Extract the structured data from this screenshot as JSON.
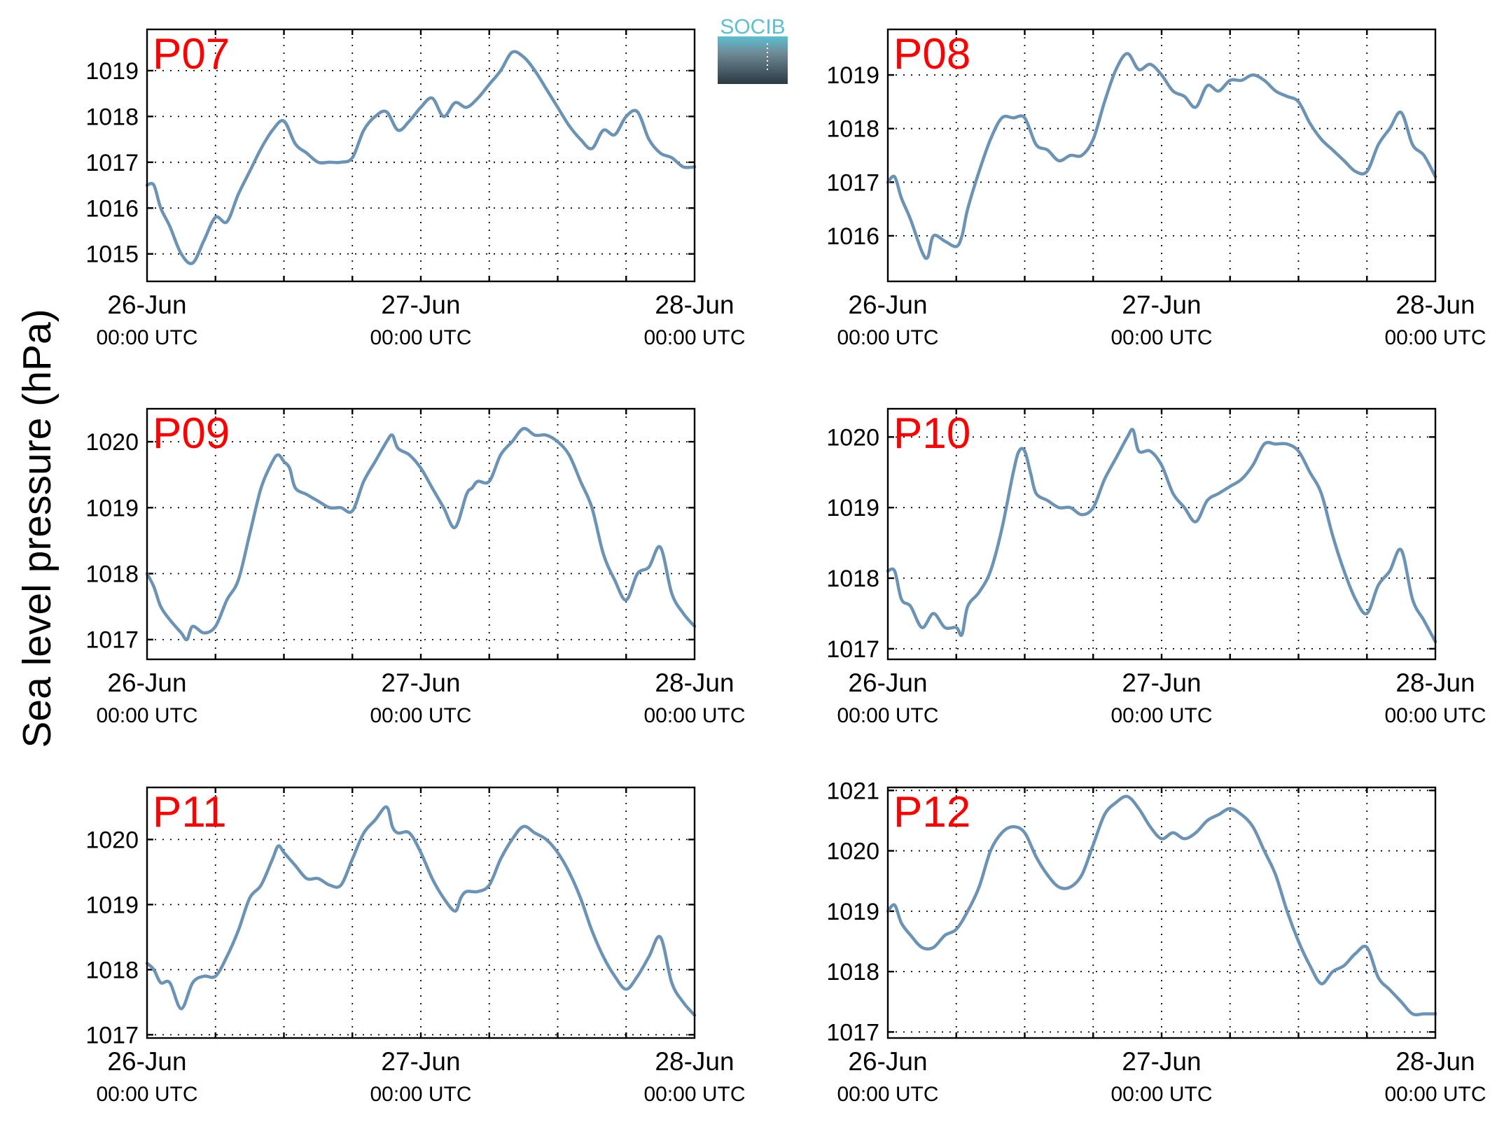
{
  "ylabel": "Sea level pressure (hPa)",
  "logo_text": "SOCIB",
  "colors": {
    "series": "#6a93b5",
    "panel_title": "#ff0000",
    "logo_top": "#5bbfd2",
    "logo_bottom": "#2b3a44"
  },
  "chart_data": [
    {
      "type": "line",
      "title": "P07",
      "x_ticks": [
        {
          "date": "26-Jun",
          "time": "00:00 UTC"
        },
        {
          "date": "27-Jun",
          "time": "00:00 UTC"
        },
        {
          "date": "28-Jun",
          "time": "00:00 UTC"
        }
      ],
      "xlim_hours": [
        0,
        48
      ],
      "grid": true,
      "ylim": [
        1014.4,
        1019.9
      ],
      "yticks": [
        1015,
        1016,
        1017,
        1018,
        1019
      ],
      "series": [
        {
          "x_hours": [
            0,
            0.6,
            1.2,
            2,
            3,
            4,
            5,
            6,
            7,
            8,
            9,
            10,
            11,
            12,
            13,
            14,
            15,
            16,
            17,
            18,
            19,
            20,
            21,
            22,
            23,
            24,
            25,
            26,
            27,
            28,
            29,
            30,
            31,
            32,
            33,
            34,
            35,
            36,
            37,
            38,
            39,
            40,
            41,
            42,
            43,
            44,
            45,
            46,
            47,
            48
          ],
          "y": [
            1016.5,
            1016.5,
            1016.0,
            1015.6,
            1015.0,
            1014.8,
            1015.3,
            1015.8,
            1015.7,
            1016.3,
            1016.8,
            1017.3,
            1017.7,
            1017.9,
            1017.4,
            1017.2,
            1017.0,
            1017.0,
            1017.0,
            1017.1,
            1017.7,
            1018.0,
            1018.1,
            1017.7,
            1017.9,
            1018.2,
            1018.4,
            1018.0,
            1018.3,
            1018.2,
            1018.4,
            1018.7,
            1019.0,
            1019.4,
            1019.3,
            1019.0,
            1018.6,
            1018.2,
            1017.8,
            1017.5,
            1017.3,
            1017.7,
            1017.6,
            1018.0,
            1018.1,
            1017.5,
            1017.2,
            1017.1,
            1016.9,
            1016.9
          ]
        }
      ]
    },
    {
      "type": "line",
      "title": "P08",
      "x_ticks": [
        {
          "date": "26-Jun",
          "time": "00:00 UTC"
        },
        {
          "date": "27-Jun",
          "time": "00:00 UTC"
        },
        {
          "date": "28-Jun",
          "time": "00:00 UTC"
        }
      ],
      "xlim_hours": [
        0,
        48
      ],
      "grid": true,
      "ylim": [
        1015.15,
        1019.85
      ],
      "yticks": [
        1016,
        1017,
        1018,
        1019
      ],
      "series": [
        {
          "x_hours": [
            0,
            0.6,
            1.2,
            2,
            3,
            3.5,
            4,
            5,
            6,
            6.5,
            7,
            8,
            9,
            10,
            11,
            12,
            13,
            14,
            15,
            16,
            17,
            18,
            19,
            20,
            21,
            22,
            23,
            24,
            25,
            26,
            27,
            28,
            29,
            30,
            31,
            32,
            33,
            34,
            35,
            36,
            37,
            38,
            39,
            40,
            41,
            42,
            43,
            44,
            45,
            46,
            47,
            48
          ],
          "y": [
            1017.0,
            1017.1,
            1016.7,
            1016.3,
            1015.7,
            1015.6,
            1016.0,
            1015.9,
            1015.8,
            1016.0,
            1016.5,
            1017.2,
            1017.8,
            1018.2,
            1018.2,
            1018.2,
            1017.7,
            1017.6,
            1017.4,
            1017.5,
            1017.5,
            1017.8,
            1018.5,
            1019.1,
            1019.4,
            1019.1,
            1019.2,
            1019.0,
            1018.7,
            1018.6,
            1018.4,
            1018.8,
            1018.7,
            1018.9,
            1018.9,
            1019.0,
            1018.9,
            1018.7,
            1018.6,
            1018.5,
            1018.1,
            1017.8,
            1017.6,
            1017.4,
            1017.2,
            1017.2,
            1017.7,
            1018.0,
            1018.3,
            1017.7,
            1017.5,
            1017.1
          ]
        }
      ]
    },
    {
      "type": "line",
      "title": "P09",
      "x_ticks": [
        {
          "date": "26-Jun",
          "time": "00:00 UTC"
        },
        {
          "date": "27-Jun",
          "time": "00:00 UTC"
        },
        {
          "date": "28-Jun",
          "time": "00:00 UTC"
        }
      ],
      "xlim_hours": [
        0,
        48
      ],
      "grid": true,
      "ylim": [
        1016.7,
        1020.5
      ],
      "yticks": [
        1017,
        1018,
        1019,
        1020
      ],
      "series": [
        {
          "x_hours": [
            0,
            0.6,
            1.2,
            2,
            3,
            3.5,
            4,
            5,
            6,
            7,
            8,
            9,
            10,
            11,
            11.5,
            12,
            12.5,
            13,
            14,
            15,
            16,
            17,
            18,
            19,
            20,
            21,
            21.5,
            22,
            23,
            24,
            25,
            26,
            27,
            28,
            28.5,
            29,
            30,
            31,
            32,
            33,
            34,
            35,
            36,
            37,
            38,
            39,
            40,
            41,
            42,
            43,
            44,
            45,
            46,
            47,
            48
          ],
          "y": [
            1018.0,
            1017.8,
            1017.5,
            1017.3,
            1017.1,
            1017.0,
            1017.2,
            1017.1,
            1017.2,
            1017.6,
            1017.9,
            1018.6,
            1019.3,
            1019.7,
            1019.8,
            1019.7,
            1019.6,
            1019.3,
            1019.2,
            1019.1,
            1019.0,
            1019.0,
            1018.95,
            1019.4,
            1019.7,
            1020.0,
            1020.1,
            1019.9,
            1019.8,
            1019.6,
            1019.3,
            1019.0,
            1018.7,
            1019.2,
            1019.3,
            1019.4,
            1019.4,
            1019.8,
            1020.0,
            1020.2,
            1020.1,
            1020.1,
            1020.0,
            1019.8,
            1019.4,
            1019.0,
            1018.3,
            1017.9,
            1017.6,
            1018.0,
            1018.1,
            1018.4,
            1017.7,
            1017.4,
            1017.2
          ]
        }
      ]
    },
    {
      "type": "line",
      "title": "P10",
      "x_ticks": [
        {
          "date": "26-Jun",
          "time": "00:00 UTC"
        },
        {
          "date": "27-Jun",
          "time": "00:00 UTC"
        },
        {
          "date": "28-Jun",
          "time": "00:00 UTC"
        }
      ],
      "xlim_hours": [
        0,
        48
      ],
      "grid": true,
      "ylim": [
        1016.85,
        1020.4
      ],
      "yticks": [
        1017,
        1018,
        1019,
        1020
      ],
      "series": [
        {
          "x_hours": [
            0,
            0.6,
            1.2,
            2,
            3,
            4,
            5,
            6,
            6.5,
            7,
            8,
            9,
            10,
            11,
            11.5,
            12,
            12.5,
            13,
            14,
            15,
            16,
            17,
            18,
            19,
            20,
            21,
            21.5,
            22,
            23,
            24,
            25,
            26,
            27,
            28,
            29,
            30,
            31,
            32,
            33,
            34,
            35,
            36,
            37,
            38,
            39,
            40,
            41,
            42,
            43,
            44,
            45,
            46,
            47,
            48
          ],
          "y": [
            1018.1,
            1018.1,
            1017.7,
            1017.6,
            1017.3,
            1017.5,
            1017.3,
            1017.3,
            1017.2,
            1017.6,
            1017.8,
            1018.1,
            1018.7,
            1019.5,
            1019.8,
            1019.8,
            1019.5,
            1019.2,
            1019.1,
            1019.0,
            1019.0,
            1018.9,
            1019.0,
            1019.4,
            1019.7,
            1020.0,
            1020.1,
            1019.8,
            1019.8,
            1019.6,
            1019.2,
            1019.0,
            1018.8,
            1019.1,
            1019.2,
            1019.3,
            1019.4,
            1019.6,
            1019.9,
            1019.9,
            1019.9,
            1019.8,
            1019.5,
            1019.2,
            1018.6,
            1018.1,
            1017.7,
            1017.5,
            1017.9,
            1018.1,
            1018.4,
            1017.7,
            1017.4,
            1017.1
          ]
        }
      ]
    },
    {
      "type": "line",
      "title": "P11",
      "x_ticks": [
        {
          "date": "26-Jun",
          "time": "00:00 UTC"
        },
        {
          "date": "27-Jun",
          "time": "00:00 UTC"
        },
        {
          "date": "28-Jun",
          "time": "00:00 UTC"
        }
      ],
      "xlim_hours": [
        0,
        48
      ],
      "grid": true,
      "ylim": [
        1016.95,
        1020.8
      ],
      "yticks": [
        1017,
        1018,
        1019,
        1020
      ],
      "series": [
        {
          "x_hours": [
            0,
            0.6,
            1.2,
            2,
            3,
            4,
            5,
            6,
            7,
            8,
            9,
            10,
            11,
            11.5,
            12,
            12.5,
            13,
            14,
            15,
            16,
            17,
            18,
            19,
            20,
            21,
            21.5,
            22,
            23,
            24,
            25,
            26,
            27,
            27.5,
            28,
            29,
            30,
            31,
            32,
            33,
            34,
            35,
            36,
            37,
            38,
            39,
            40,
            41,
            42,
            43,
            44,
            45,
            46,
            47,
            48
          ],
          "y": [
            1018.1,
            1018.0,
            1017.8,
            1017.8,
            1017.4,
            1017.8,
            1017.9,
            1017.9,
            1018.2,
            1018.6,
            1019.1,
            1019.3,
            1019.7,
            1019.9,
            1019.8,
            1019.7,
            1019.6,
            1019.4,
            1019.4,
            1019.3,
            1019.3,
            1019.7,
            1020.1,
            1020.3,
            1020.5,
            1020.2,
            1020.1,
            1020.1,
            1019.8,
            1019.4,
            1019.1,
            1018.9,
            1019.1,
            1019.2,
            1019.2,
            1019.3,
            1019.7,
            1020.0,
            1020.2,
            1020.1,
            1020.0,
            1019.8,
            1019.5,
            1019.1,
            1018.6,
            1018.2,
            1017.9,
            1017.7,
            1017.9,
            1018.2,
            1018.5,
            1017.8,
            1017.5,
            1017.3
          ]
        }
      ]
    },
    {
      "type": "line",
      "title": "P12",
      "x_ticks": [
        {
          "date": "26-Jun",
          "time": "00:00 UTC"
        },
        {
          "date": "27-Jun",
          "time": "00:00 UTC"
        },
        {
          "date": "28-Jun",
          "time": "00:00 UTC"
        }
      ],
      "xlim_hours": [
        0,
        48
      ],
      "grid": true,
      "ylim": [
        1016.9,
        1021.05
      ],
      "yticks": [
        1017,
        1018,
        1019,
        1020,
        1021
      ],
      "series": [
        {
          "x_hours": [
            0,
            0.6,
            1.2,
            2,
            3,
            4,
            5,
            6,
            7,
            8,
            9,
            10,
            11,
            12,
            13,
            14,
            15,
            16,
            17,
            18,
            19,
            20,
            21,
            22,
            23,
            24,
            25,
            26,
            27,
            28,
            29,
            30,
            31,
            32,
            33,
            34,
            35,
            36,
            37,
            38,
            39,
            40,
            41,
            42,
            43,
            44,
            45,
            46,
            47,
            48
          ],
          "y": [
            1019.0,
            1019.1,
            1018.8,
            1018.6,
            1018.4,
            1018.4,
            1018.6,
            1018.7,
            1019.0,
            1019.4,
            1020.0,
            1020.3,
            1020.4,
            1020.3,
            1019.9,
            1019.6,
            1019.4,
            1019.4,
            1019.6,
            1020.1,
            1020.6,
            1020.8,
            1020.9,
            1020.7,
            1020.4,
            1020.2,
            1020.3,
            1020.2,
            1020.3,
            1020.5,
            1020.6,
            1020.7,
            1020.6,
            1020.4,
            1020.0,
            1019.6,
            1019.0,
            1018.5,
            1018.1,
            1017.8,
            1018.0,
            1018.1,
            1018.3,
            1018.4,
            1017.9,
            1017.7,
            1017.5,
            1017.3,
            1017.3,
            1017.3
          ]
        }
      ]
    }
  ]
}
